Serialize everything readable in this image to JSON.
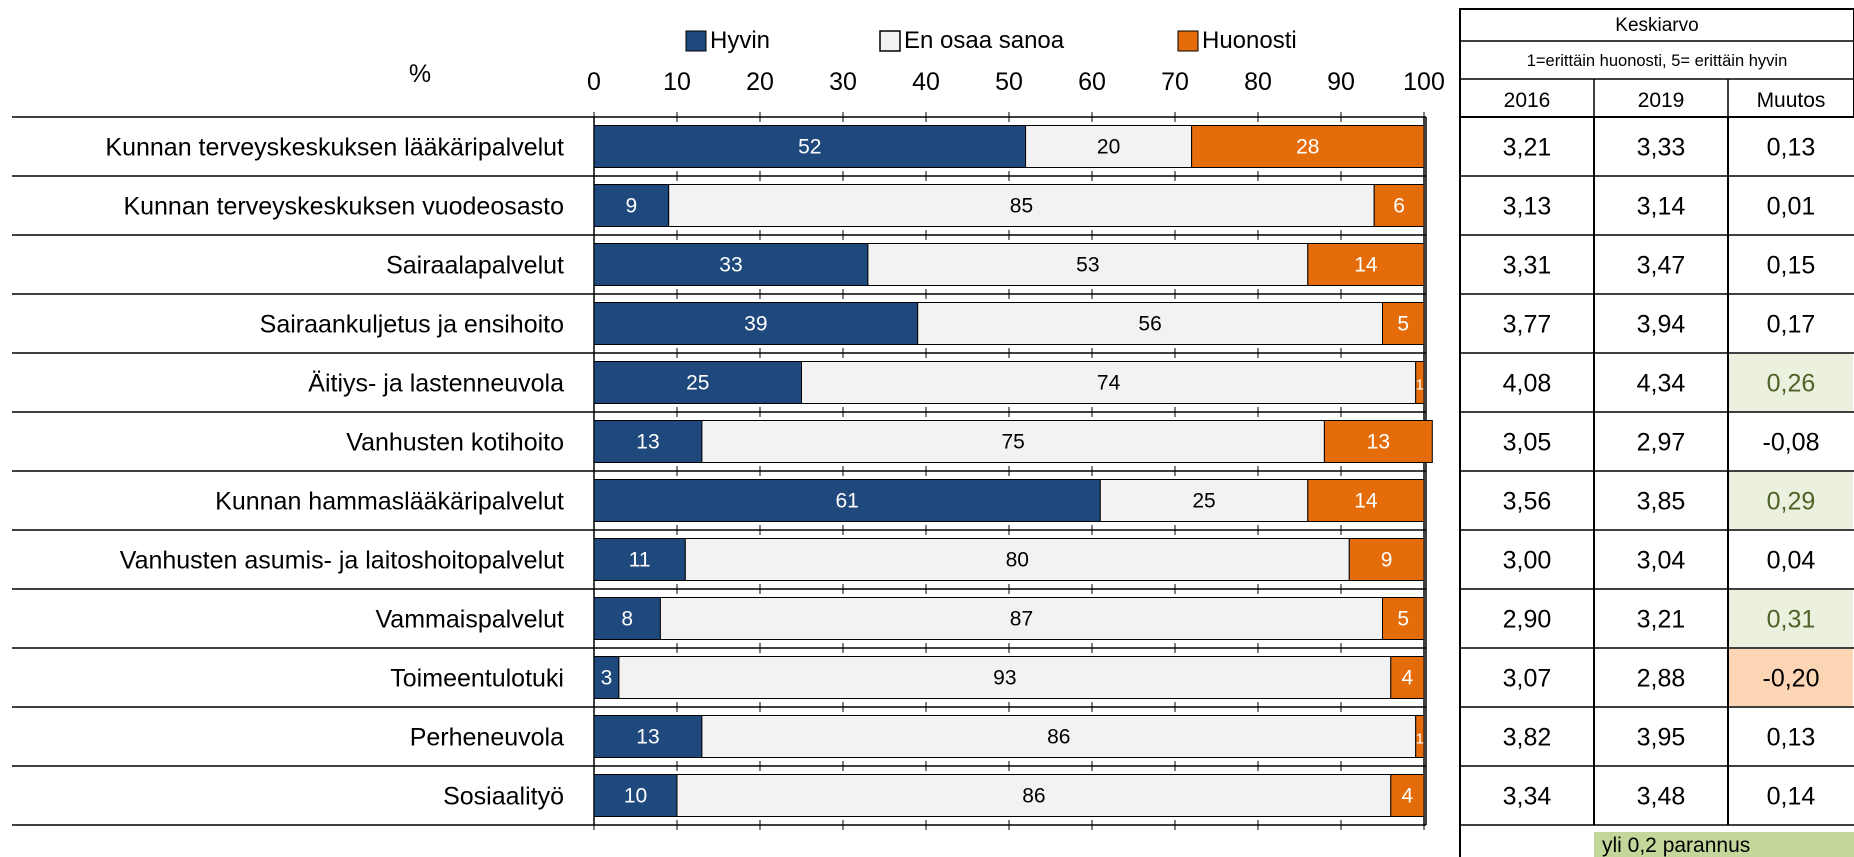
{
  "chart_data": {
    "type": "bar",
    "stacked": true,
    "orientation": "horizontal",
    "axis_title": "%",
    "xlim": [
      0,
      100
    ],
    "x_ticks": [
      0,
      10,
      20,
      30,
      40,
      50,
      60,
      70,
      80,
      90,
      100
    ],
    "legend_placement": "top",
    "categories": [
      "Kunnan terveyskeskuksen lääkäripalvelut",
      "Kunnan terveyskeskuksen vuodeosasto",
      "Sairaalapalvelut",
      "Sairaankuljetus ja ensihoito",
      "Äitiys- ja lastenneuvola",
      "Vanhusten kotihoito",
      "Kunnan hammaslääkäripalvelut",
      "Vanhusten asumis- ja laitoshoitopalvelut",
      "Vammaispalvelut",
      "Toimeentulotuki",
      "Perheneuvola",
      "Sosiaalityö"
    ],
    "series": [
      {
        "name": "Hyvin",
        "color": "#1f497d",
        "label_color": "#ffffff",
        "values": [
          52,
          9,
          33,
          39,
          25,
          13,
          61,
          11,
          8,
          3,
          13,
          10
        ]
      },
      {
        "name": "En osaa sanoa",
        "color": "#f2f2f2",
        "label_color": "#000000",
        "values": [
          20,
          85,
          53,
          56,
          74,
          75,
          25,
          80,
          87,
          93,
          86,
          86
        ]
      },
      {
        "name": "Huonosti",
        "color": "#e46c0a",
        "label_color": "#ffffff",
        "values": [
          28,
          6,
          14,
          5,
          1,
          13,
          14,
          9,
          5,
          4,
          1,
          4
        ]
      }
    ]
  },
  "table": {
    "header": "Keskiarvo",
    "scale_note": "1=erittäin huonosti, 5= erittäin hyvin",
    "columns": [
      "2016",
      "2019",
      "Muutos"
    ],
    "rows": [
      {
        "v2016": "3,21",
        "v2019": "3,33",
        "muutos": "0,13",
        "highlight": "none"
      },
      {
        "v2016": "3,13",
        "v2019": "3,14",
        "muutos": "0,01",
        "highlight": "none"
      },
      {
        "v2016": "3,31",
        "v2019": "3,47",
        "muutos": "0,15",
        "highlight": "none"
      },
      {
        "v2016": "3,77",
        "v2019": "3,94",
        "muutos": "0,17",
        "highlight": "none"
      },
      {
        "v2016": "4,08",
        "v2019": "4,34",
        "muutos": "0,26",
        "highlight": "improve"
      },
      {
        "v2016": "3,05",
        "v2019": "2,97",
        "muutos": "-0,08",
        "highlight": "none"
      },
      {
        "v2016": "3,56",
        "v2019": "3,85",
        "muutos": "0,29",
        "highlight": "improve"
      },
      {
        "v2016": "3,00",
        "v2019": "3,04",
        "muutos": "0,04",
        "highlight": "none"
      },
      {
        "v2016": "2,90",
        "v2019": "3,21",
        "muutos": "0,31",
        "highlight": "improve"
      },
      {
        "v2016": "3,07",
        "v2019": "2,88",
        "muutos": "-0,20",
        "highlight": "worsen"
      },
      {
        "v2016": "3,82",
        "v2019": "3,95",
        "muutos": "0,13",
        "highlight": "none"
      },
      {
        "v2016": "3,34",
        "v2019": "3,48",
        "muutos": "0,14",
        "highlight": "none"
      }
    ],
    "improve_fill": "#ebf1de",
    "improve_text": "#4f6228",
    "worsen_fill": "#fcd5b4",
    "footnote": "yli 0,2 parannus",
    "footnote_fill": "#c4d79b"
  }
}
